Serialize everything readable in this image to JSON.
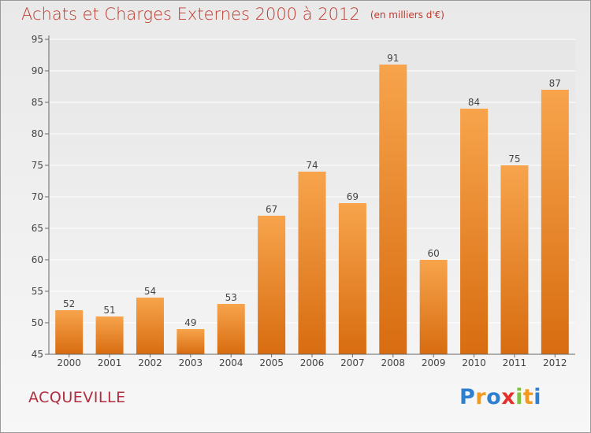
{
  "title": "Achats et Charges Externes 2000 à 2012",
  "unit_label": "(en milliers d'€)",
  "commune": "ACQUEVILLE",
  "brand": {
    "letters": [
      "P",
      "r",
      "o",
      "x",
      "i",
      "t",
      "i"
    ],
    "colors": [
      "#2f7fd1",
      "#f39a1e",
      "#2f7fd1",
      "#e2312c",
      "#7cc23f",
      "#f39a1e",
      "#2f7fd1"
    ]
  },
  "colors": {
    "bar_top": "#f7a44c",
    "bar_bottom": "#d86c10",
    "title": "#c0392b",
    "commune": "#b22d40"
  },
  "chart_data": {
    "type": "bar",
    "title": "Achats et Charges Externes 2000 à 2012",
    "subtitle": "(en milliers d'€)",
    "categories": [
      "2000",
      "2001",
      "2002",
      "2003",
      "2004",
      "2005",
      "2006",
      "2007",
      "2008",
      "2009",
      "2010",
      "2011",
      "2012"
    ],
    "values": [
      52,
      51,
      54,
      49,
      53,
      67,
      74,
      69,
      91,
      60,
      84,
      75,
      87
    ],
    "ylim": [
      45,
      95
    ],
    "yticks": [
      45,
      50,
      55,
      60,
      65,
      70,
      75,
      80,
      85,
      90,
      95
    ],
    "grid": true,
    "data_labels": true,
    "xlabel": "",
    "ylabel": ""
  }
}
